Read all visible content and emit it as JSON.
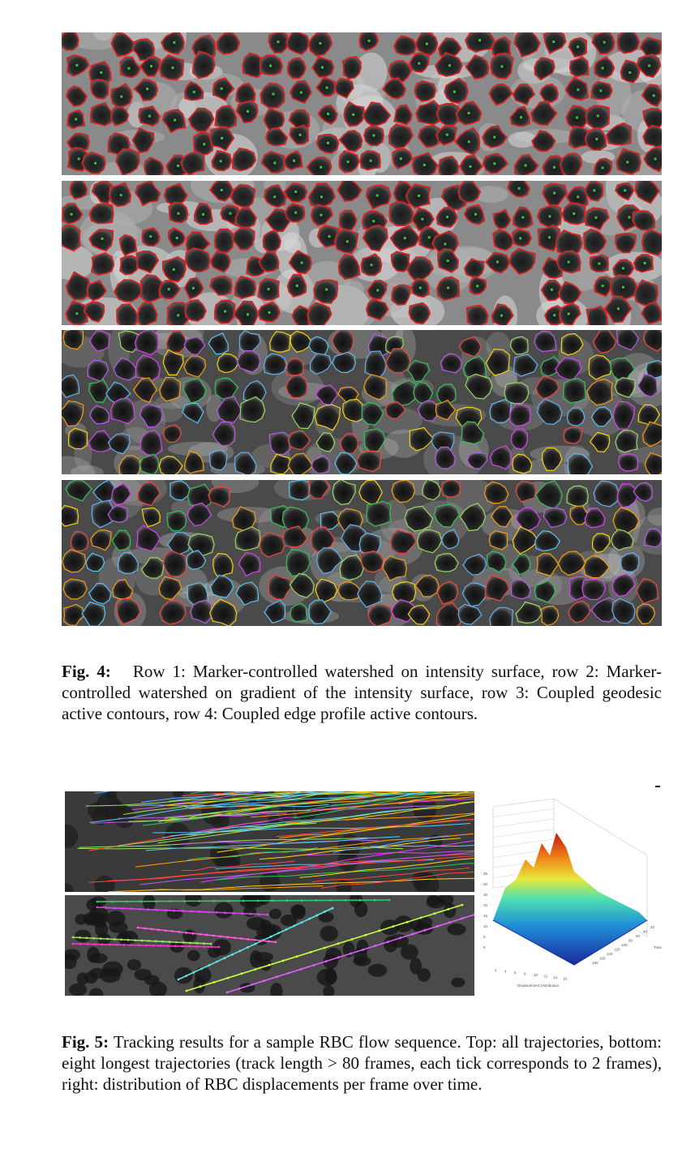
{
  "fig4": {
    "label": "Fig. 4",
    "separator": ":",
    "text": "Row 1: Marker-controlled watershed on intensity surface, row 2: Marker-controlled watershed on gradient of the intensity surface, row 3: Coupled geodesic active contours, row 4: Coupled edge profile active contours.",
    "rows": [
      {
        "contour_color": "#e02020",
        "style": "watershed"
      },
      {
        "contour_color": "#e02020",
        "style": "watershed"
      },
      {
        "contour_color": "multi",
        "style": "active-contour"
      },
      {
        "contour_color": "multi",
        "style": "active-contour"
      }
    ]
  },
  "fig5": {
    "label": "Fig. 5",
    "separator": ":",
    "text": "Tracking results for a sample RBC flow sequence. Top: all trajectories, bottom: eight longest trajectories (track length > 80 frames, each tick corresponds to 2 frames), right: distribution of RBC displacements per frame over time.",
    "plot": {
      "xlabel": "Displacement Distribution",
      "ylabel": "Time",
      "z_ticks": [
        "0",
        "5",
        "10",
        "15",
        "20",
        "25",
        "30",
        "35"
      ],
      "x_ticks": [
        "2",
        "4",
        "6",
        "8",
        "10",
        "12",
        "14",
        "16"
      ],
      "y_ticks": [
        "20",
        "40",
        "60",
        "80",
        "100",
        "120",
        "140",
        "160",
        "180"
      ]
    }
  }
}
